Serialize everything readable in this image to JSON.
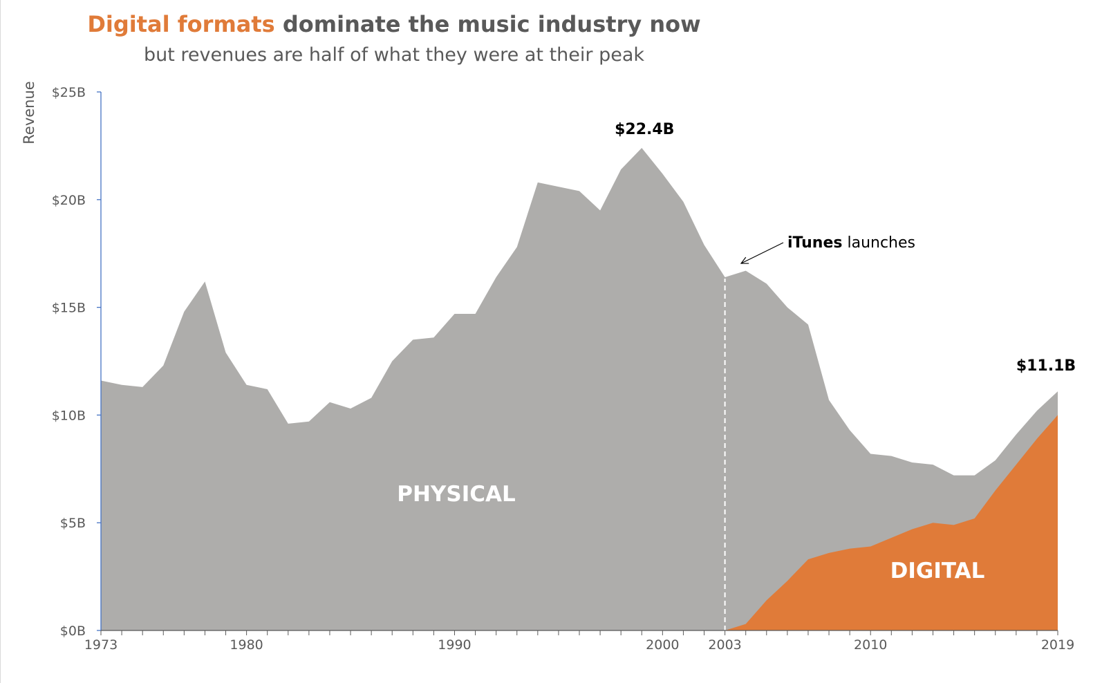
{
  "title": {
    "highlight": "Digital formats",
    "rest": " dominate the music industry now",
    "subtitle": "but revenues are half of what they were at their peak"
  },
  "colors": {
    "physical": "#AEADAB",
    "digital": "#E07B39",
    "text": "#595959",
    "axis": "#4472C4"
  },
  "chart_data": {
    "type": "area",
    "stacked": true,
    "ylabel": "Revenue",
    "ylim": [
      0,
      25
    ],
    "y_ticks": [
      {
        "value": 0,
        "label": "$0B"
      },
      {
        "value": 5,
        "label": "$5B"
      },
      {
        "value": 10,
        "label": "$10B"
      },
      {
        "value": 15,
        "label": "$15B"
      },
      {
        "value": 20,
        "label": "$20B"
      },
      {
        "value": 25,
        "label": "$25B"
      }
    ],
    "xlim": [
      1973,
      2019
    ],
    "x_tick_labels": [
      1973,
      1980,
      1990,
      2000,
      2003,
      2010,
      2019
    ],
    "x": [
      1973,
      1974,
      1975,
      1976,
      1977,
      1978,
      1979,
      1980,
      1981,
      1982,
      1983,
      1984,
      1985,
      1986,
      1987,
      1988,
      1989,
      1990,
      1991,
      1992,
      1993,
      1994,
      1995,
      1996,
      1997,
      1998,
      1999,
      2000,
      2001,
      2002,
      2003,
      2004,
      2005,
      2006,
      2007,
      2008,
      2009,
      2010,
      2011,
      2012,
      2013,
      2014,
      2015,
      2016,
      2017,
      2018,
      2019
    ],
    "series": [
      {
        "name": "PHYSICAL",
        "values": [
          11.6,
          11.4,
          11.3,
          12.3,
          14.8,
          16.2,
          12.9,
          11.4,
          11.2,
          9.6,
          9.7,
          10.6,
          10.3,
          10.8,
          12.5,
          13.5,
          13.6,
          14.7,
          14.7,
          16.4,
          17.8,
          20.8,
          20.6,
          20.4,
          19.5,
          21.4,
          22.4,
          21.2,
          19.9,
          17.9,
          16.4,
          16.4,
          14.7,
          12.7,
          10.9,
          7.1,
          5.5,
          4.3,
          3.8,
          3.1,
          2.7,
          2.3,
          2.0,
          1.4,
          1.4,
          1.3,
          1.1
        ]
      },
      {
        "name": "DIGITAL",
        "values": [
          0,
          0,
          0,
          0,
          0,
          0,
          0,
          0,
          0,
          0,
          0,
          0,
          0,
          0,
          0,
          0,
          0,
          0,
          0,
          0,
          0,
          0,
          0,
          0,
          0,
          0,
          0,
          0,
          0,
          0,
          0,
          0.3,
          1.4,
          2.3,
          3.3,
          3.6,
          3.8,
          3.9,
          4.3,
          4.7,
          5.0,
          4.9,
          5.2,
          6.5,
          7.7,
          8.9,
          10.0
        ]
      }
    ],
    "annotations": {
      "peak": "$22.4B",
      "end": "$11.1B",
      "itunes_bold": "iTunes",
      "itunes_rest": " launches",
      "itunes_year": 2003
    }
  }
}
